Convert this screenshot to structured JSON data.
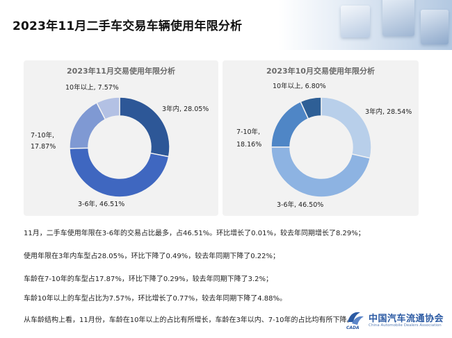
{
  "page": {
    "title": "2023年11月二手车交易车辆使用年限分析"
  },
  "chart_data": [
    {
      "type": "pie",
      "title": "2023年11月交易使用年限分析",
      "slices": [
        {
          "label": "3年内",
          "value": 28.05,
          "display": "3年内, 28.05%",
          "color": "#2d5797"
        },
        {
          "label": "3-6年",
          "value": 46.51,
          "display": "3-6年, 46.51%",
          "color": "#3f67c0"
        },
        {
          "label": "7-10年",
          "value": 17.87,
          "display_line1": "7-10年,",
          "display_line2": "17.87%",
          "color": "#7f99d3"
        },
        {
          "label": "10年以上",
          "value": 7.57,
          "display": "10年以上, 7.57%",
          "color": "#b3c1e4"
        }
      ]
    },
    {
      "type": "pie",
      "title": "2023年10月交易使用年限分析",
      "slices": [
        {
          "label": "3年内",
          "value": 28.54,
          "display": "3年内, 28.54%",
          "color": "#b8cfea"
        },
        {
          "label": "3-6年",
          "value": 46.5,
          "display": "3-6年, 46.50%",
          "color": "#8db3e2"
        },
        {
          "label": "7-10年",
          "value": 18.16,
          "display_line1": "7-10年,",
          "display_line2": "18.16%",
          "color": "#4f86c6"
        },
        {
          "label": "10年以上",
          "value": 6.8,
          "display": "10年以上, 6.80%",
          "color": "#2e5f96"
        }
      ]
    }
  ],
  "notes": [
    "11月，二手车使用年限在3-6年的交易占比最多，占46.51%。环比增长了0.01%，较去年同期增长了8.29%；",
    "使用年限在3年内车型占28.05%，环比下降了0.49%，较去年同期下降了0.22%；",
    "车龄在7-10年的车型占17.87%，环比下降了0.29%，较去年同期下降了3.2%；",
    "车龄10年以上的车型占比为7.57%，环比增长了0.77%，较去年同期下降了4.88%。",
    "从车龄结构上看，11月份，车龄在10年以上的占比有所增长，车龄在3年以内、7-10年的占比均有所下降。"
  ],
  "logo": {
    "name_cn": "中国汽车流通协会",
    "name_en": "China Automobile Dealers Association",
    "mark_text": "CADA"
  }
}
